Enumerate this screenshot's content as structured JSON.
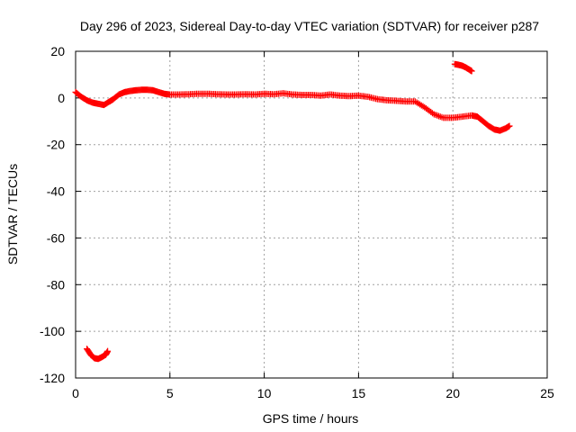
{
  "chart_data": {
    "type": "scatter",
    "title": "Day 296 of 2023, Sidereal Day-to-day VTEC variation (SDTVAR) for receiver p287",
    "xlabel": "GPS time / hours",
    "ylabel": "SDTVAR / TECUs",
    "xlim": [
      0,
      25
    ],
    "ylim": [
      -120,
      20
    ],
    "xticks": [
      "0",
      "5",
      "10",
      "15",
      "20",
      "25"
    ],
    "yticks": [
      "20",
      "0",
      "-20",
      "-40",
      "-60",
      "-80",
      "-100",
      "-120"
    ],
    "grid": true,
    "marker": "+",
    "series": [
      {
        "name": "p287",
        "color": "#ff0000",
        "segments": [
          {
            "x": [
              0.0,
              0.3,
              0.6,
              0.9,
              1.2,
              1.5,
              1.8,
              2.0,
              2.3,
              2.6,
              2.9,
              3.2,
              3.5,
              3.8,
              4.1,
              4.4,
              4.7,
              5.0,
              5.5,
              6.0,
              6.5,
              7.0,
              7.5,
              8.0,
              8.5,
              9.0,
              9.5,
              10.0,
              10.5,
              11.0,
              11.5,
              12.0,
              12.5,
              13.0,
              13.5,
              14.0,
              14.5,
              15.0,
              15.5,
              16.0,
              16.5,
              17.0,
              17.5,
              18.0,
              18.5,
              19.0,
              19.5,
              20.0,
              20.5,
              21.0,
              21.3,
              21.6,
              21.9,
              22.2,
              22.5,
              22.8,
              23.0
            ],
            "y": [
              2.5,
              0.5,
              -1.0,
              -2.0,
              -2.5,
              -3.0,
              -1.5,
              -0.5,
              1.5,
              2.5,
              3.0,
              3.3,
              3.5,
              3.5,
              3.3,
              2.5,
              1.8,
              1.5,
              1.5,
              1.6,
              1.8,
              1.8,
              1.6,
              1.5,
              1.5,
              1.6,
              1.5,
              1.8,
              1.6,
              2.0,
              1.5,
              1.3,
              1.3,
              1.0,
              1.5,
              1.0,
              0.8,
              1.0,
              0.5,
              -0.5,
              -1.0,
              -1.2,
              -1.5,
              -1.5,
              -4.0,
              -7.0,
              -8.5,
              -8.5,
              -8.0,
              -7.5,
              -8.0,
              -10.0,
              -12.0,
              -13.5,
              -14.0,
              -13.0,
              -12.0
            ]
          },
          {
            "x": [
              0.6,
              0.8,
              1.0,
              1.2,
              1.4,
              1.6,
              1.7
            ],
            "y": [
              -107.5,
              -110.0,
              -111.5,
              -111.8,
              -111.0,
              -110.0,
              -108.5
            ]
          },
          {
            "x": [
              20.1,
              20.3,
              20.5,
              20.7,
              20.9,
              21.0
            ],
            "y": [
              14.5,
              14.2,
              13.8,
              13.0,
              12.0,
              11.5
            ]
          }
        ]
      }
    ]
  }
}
